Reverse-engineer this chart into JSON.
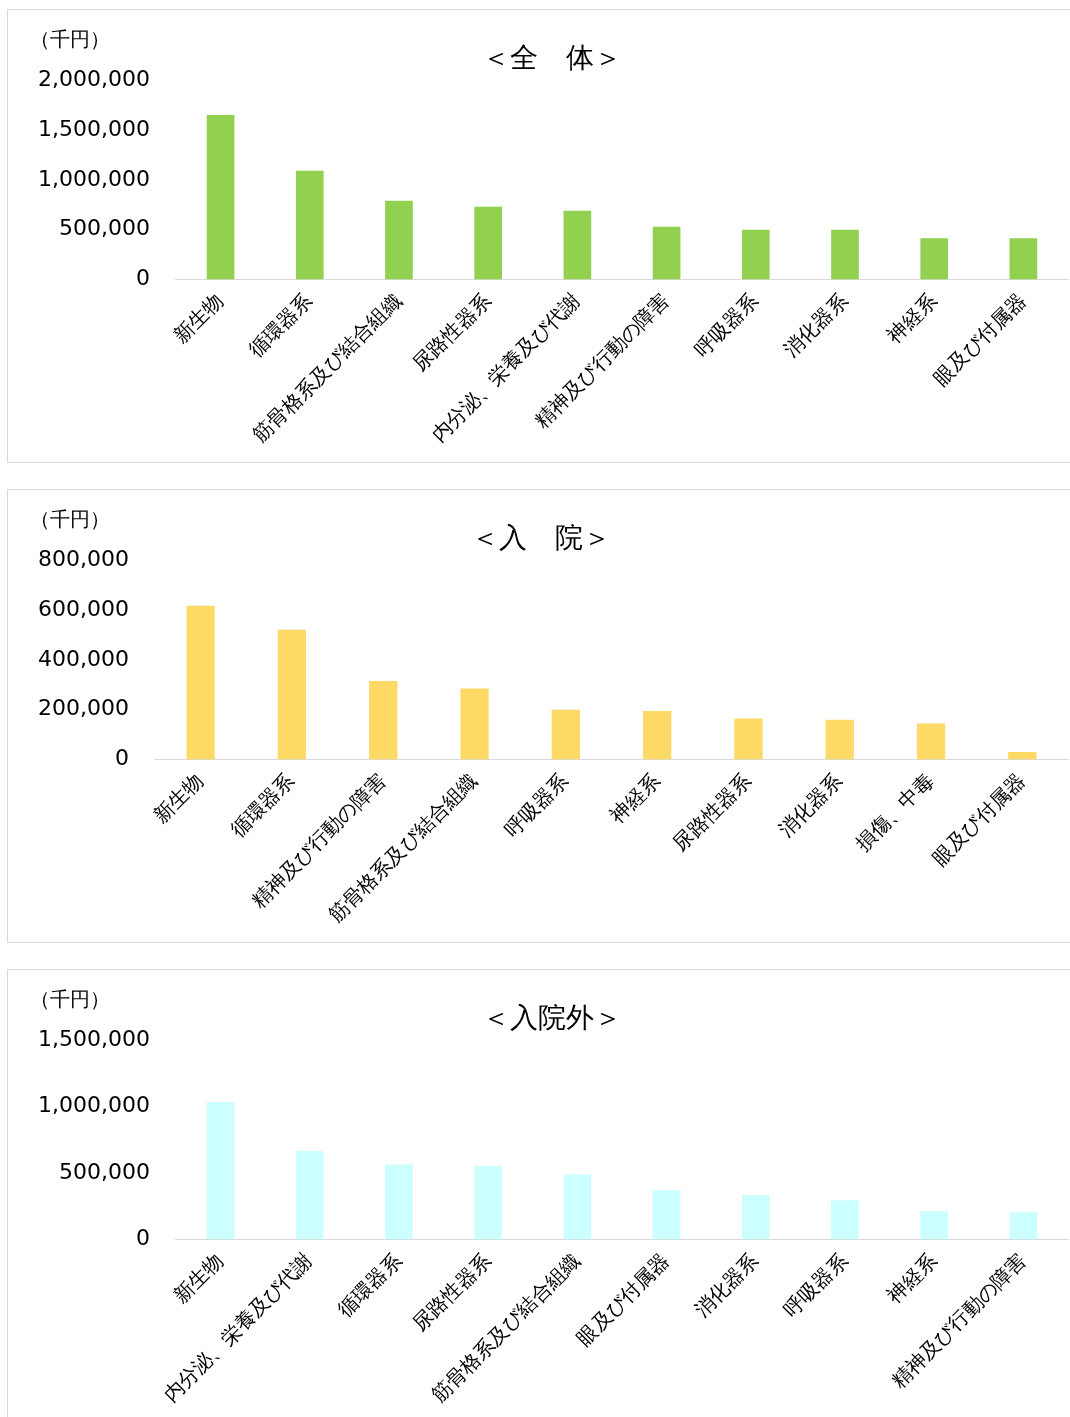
{
  "chart_data": [
    {
      "type": "bar",
      "title": "＜全　体＞",
      "ylabel": "（千円）",
      "categories": [
        "新生物",
        "循環器系",
        "筋骨格系及び結合組織",
        "尿路性器系",
        "内分泌、栄養及び代謝",
        "精神及び行動の障害",
        "呼吸器系",
        "消化器系",
        "神経系",
        "眼及び付属器"
      ],
      "values": [
        1650000,
        1090000,
        790000,
        730000,
        690000,
        530000,
        500000,
        500000,
        415000,
        415000
      ],
      "color": "#92d050",
      "ylim": [
        0,
        2000000
      ],
      "yticks": [
        {
          "value": 0,
          "label": "0"
        },
        {
          "value": 500000,
          "label": "500,000"
        },
        {
          "value": 1000000,
          "label": "1,000,000"
        },
        {
          "value": 1500000,
          "label": "1,500,000"
        },
        {
          "value": 2000000,
          "label": "2,000,000"
        }
      ],
      "grid": false,
      "legend": false
    },
    {
      "type": "bar",
      "title": "＜入　院＞",
      "ylabel": "（千円）",
      "categories": [
        "新生物",
        "循環器系",
        "精神及び行動の障害",
        "筋骨格系及び結合組織",
        "呼吸器系",
        "神経系",
        "尿路性器系",
        "消化器系",
        "損傷、中毒",
        "眼及び付属器"
      ],
      "values": [
        617000,
        520000,
        315000,
        285000,
        200000,
        195000,
        165000,
        160000,
        145000,
        30000
      ],
      "color": "#ffd966",
      "ylim": [
        0,
        800000
      ],
      "yticks": [
        {
          "value": 0,
          "label": "0"
        },
        {
          "value": 200000,
          "label": "200,000"
        },
        {
          "value": 400000,
          "label": "400,000"
        },
        {
          "value": 600000,
          "label": "600,000"
        },
        {
          "value": 800000,
          "label": "800,000"
        }
      ],
      "grid": false,
      "legend": false
    },
    {
      "type": "bar",
      "title": "＜入院外＞",
      "ylabel": "（千円）",
      "categories": [
        "新生物",
        "内分泌、栄養及び代謝",
        "循環器系",
        "尿路性器系",
        "筋骨格系及び結合組織",
        "眼及び付属器",
        "消化器系",
        "呼吸器系",
        "神経系",
        "精神及び行動の障害"
      ],
      "values": [
        1035000,
        665000,
        565000,
        555000,
        490000,
        370000,
        335000,
        295000,
        215000,
        205000
      ],
      "color": "#ccffff",
      "ylim": [
        0,
        1500000
      ],
      "yticks": [
        {
          "value": 0,
          "label": "0"
        },
        {
          "value": 500000,
          "label": "500,000"
        },
        {
          "value": 1000000,
          "label": "1,000,000"
        },
        {
          "value": 1500000,
          "label": "1,500,000"
        }
      ],
      "grid": false,
      "legend": false
    }
  ]
}
